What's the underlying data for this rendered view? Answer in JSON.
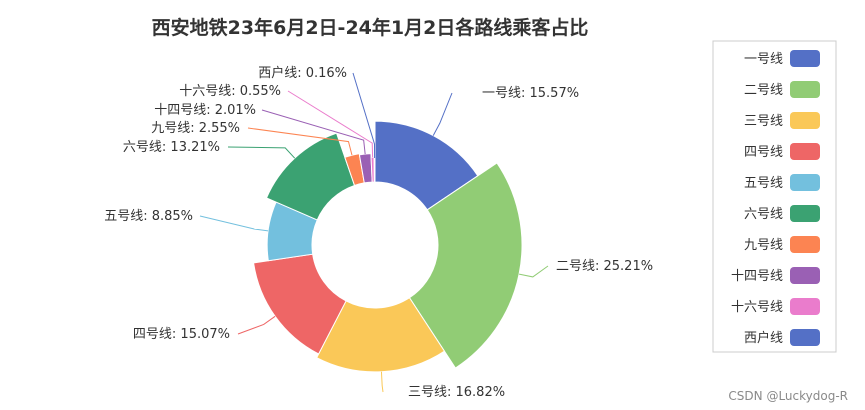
{
  "chart_data": {
    "type": "pie",
    "variant": "rose-donut",
    "title": "西安地铁23年6月2日-24年1月2日各路线乘客占比",
    "series": [
      {
        "name": "一号线",
        "value": 15.57,
        "label": "一号线: 15.57%",
        "color": "#5470c6"
      },
      {
        "name": "二号线",
        "value": 25.21,
        "label": "二号线: 25.21%",
        "color": "#91cc75"
      },
      {
        "name": "三号线",
        "value": 16.82,
        "label": "三号线: 16.82%",
        "color": "#fac858"
      },
      {
        "name": "四号线",
        "value": 15.07,
        "label": "四号线: 15.07%",
        "color": "#ee6666"
      },
      {
        "name": "五号线",
        "value": 8.85,
        "label": "五号线: 8.85%",
        "color": "#73c0de"
      },
      {
        "name": "六号线",
        "value": 13.21,
        "label": "六号线: 13.21%",
        "color": "#3ba272"
      },
      {
        "name": "九号线",
        "value": 2.55,
        "label": "九号线: 2.55%",
        "color": "#fc8452"
      },
      {
        "name": "十四号线",
        "value": 2.01,
        "label": "十四号线: 2.01%",
        "color": "#9a60b4"
      },
      {
        "name": "十六号线",
        "value": 0.55,
        "label": "十六号线: 0.55%",
        "color": "#ea7ccc"
      },
      {
        "name": "西户线",
        "value": 0.16,
        "label": "西户线: 0.16%",
        "color": "#5470c6"
      }
    ],
    "legend_position": "right"
  },
  "watermark": "CSDN @Luckydog-R"
}
